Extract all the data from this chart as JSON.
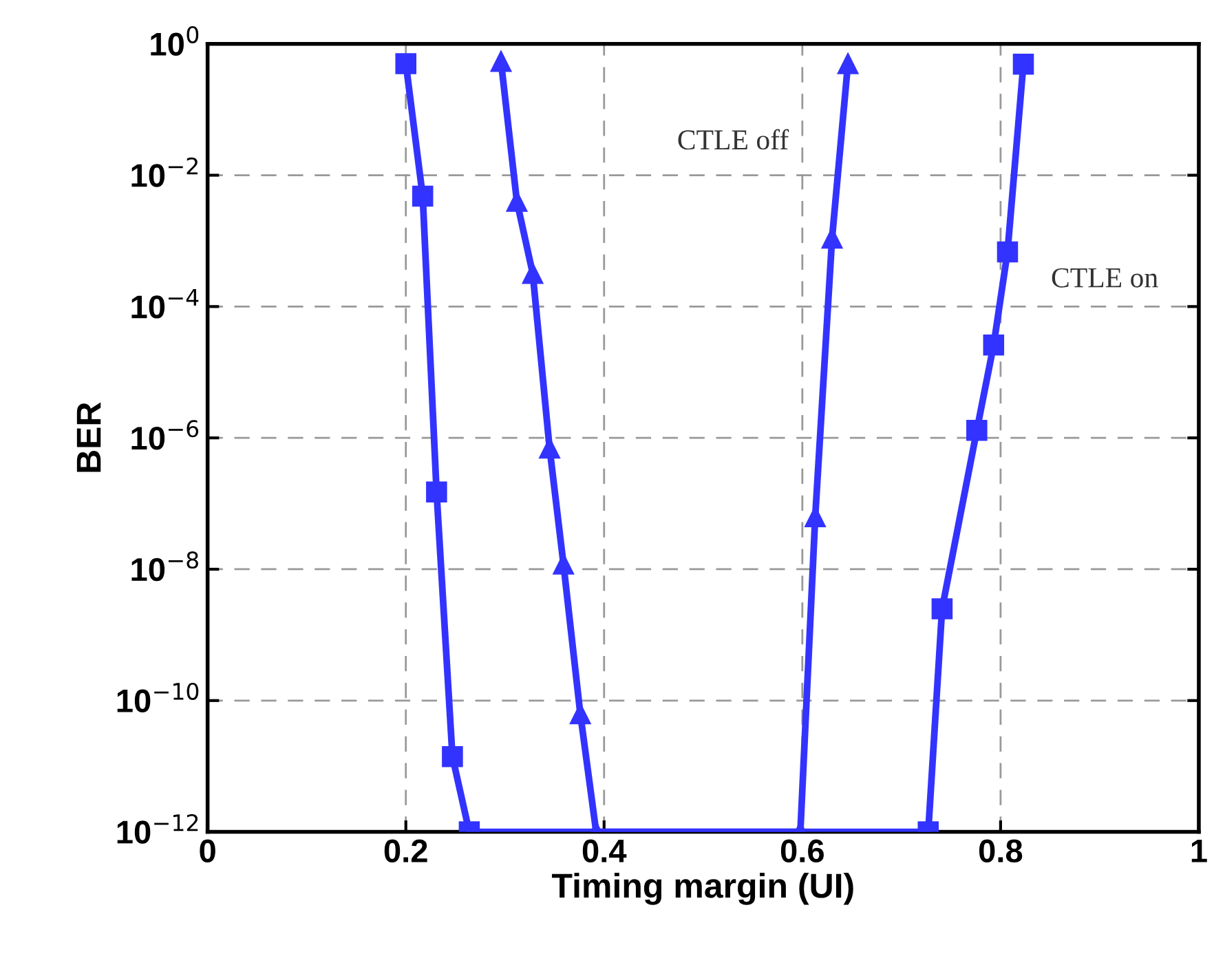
{
  "chart_data": {
    "type": "line",
    "xlabel": "Timing margin (UI)",
    "ylabel": "BER",
    "log": "y",
    "grid": true,
    "line_style": "solid",
    "xlim": [
      0,
      1
    ],
    "xticks": [
      0,
      0.2,
      0.4,
      0.6,
      0.8,
      1
    ],
    "ylim": [
      1e-12,
      1
    ],
    "yticks": [
      {
        "value": 1,
        "label": "10$^{0}$"
      },
      {
        "value": 0.01,
        "label": "10$^{−2}$"
      },
      {
        "value": 0.0001,
        "label": "10$^{−4}$"
      },
      {
        "value": 1e-06,
        "label": "10$^{−6}$"
      },
      {
        "value": 1e-08,
        "label": "10$^{−8}$"
      },
      {
        "value": 1e-10,
        "label": "10$^{−10}$"
      },
      {
        "value": 1e-12,
        "label": "10$^{−12}$"
      }
    ],
    "series": [
      {
        "name": "CTLE on",
        "color": "#3333ff",
        "marker": "square",
        "x": [
          0.2,
          0.217,
          0.231,
          0.247,
          0.264,
          0.727,
          0.741,
          0.776,
          0.793,
          0.807,
          0.823
        ],
        "values": [
          0.5,
          0.0048,
          1.5e-07,
          1.4e-11,
          1e-12,
          1e-12,
          2.5e-09,
          1.3e-06,
          2.6e-05,
          0.00068,
          0.49
        ]
      },
      {
        "name": "CTLE off",
        "color": "#3333ff",
        "marker": "triangle",
        "x": [
          0.296,
          0.312,
          0.328,
          0.345,
          0.359,
          0.376,
          0.392,
          0.598,
          0.613,
          0.63,
          0.646
        ],
        "values": [
          0.54,
          0.004,
          0.00032,
          7e-07,
          1.2e-08,
          6.3e-11,
          1e-12,
          1e-12,
          6.3e-08,
          0.0011,
          0.5
        ]
      }
    ]
  }
}
